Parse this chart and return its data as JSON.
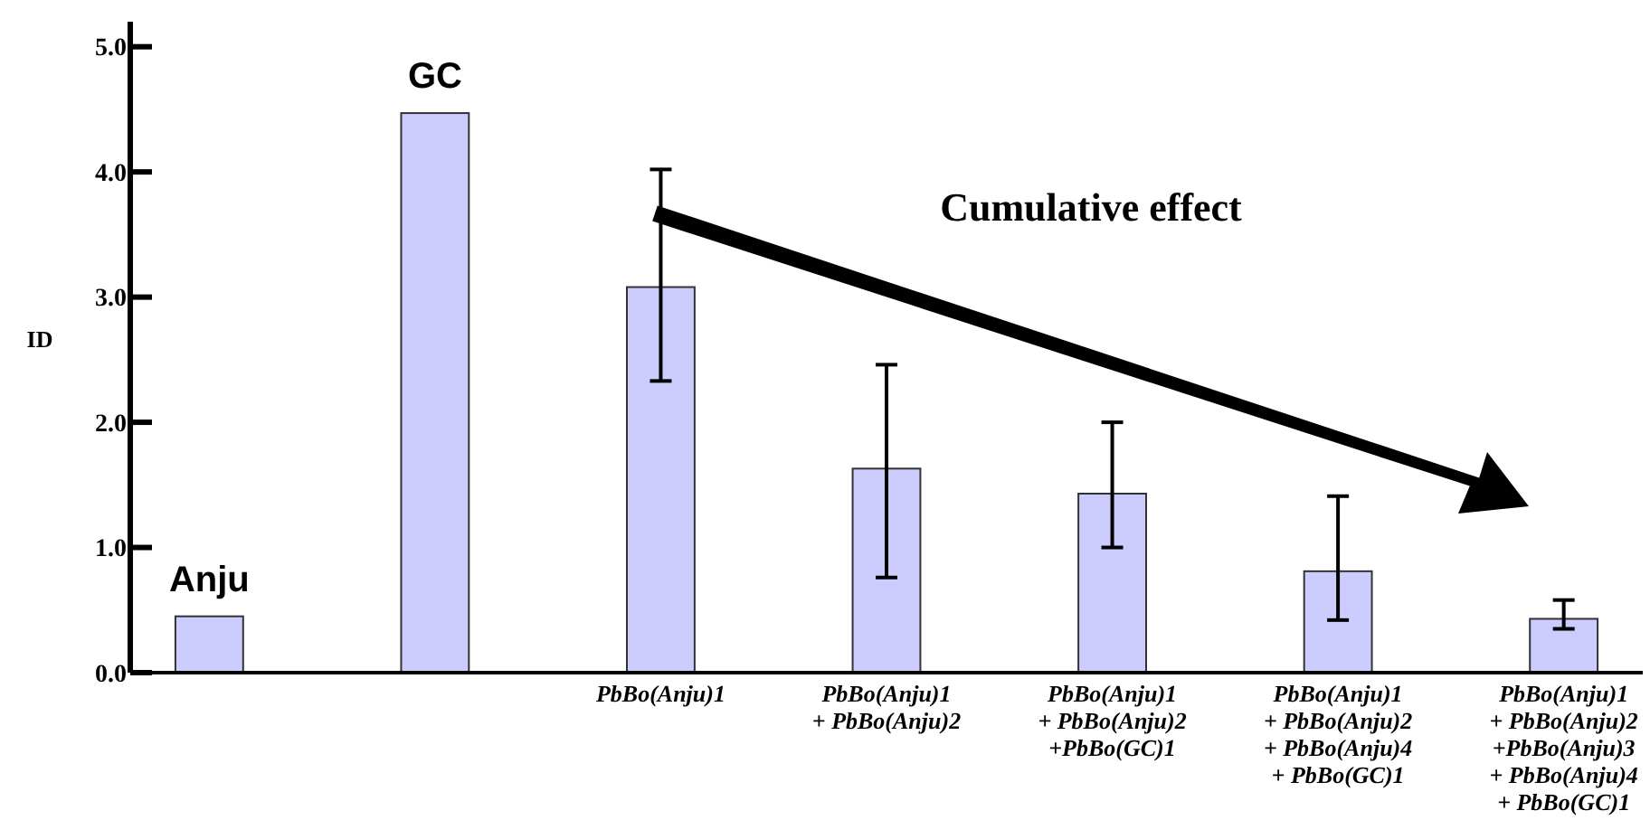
{
  "chart_data": {
    "type": "bar",
    "ylabel": "ID",
    "categories": [
      "Anju",
      "GC",
      "PbBo(Anju)1",
      "PbBo(Anju)1\n+ PbBo(Anju)2",
      "PbBo(Anju)1\n+ PbBo(Anju)2\n+PbBo(GC)1",
      "PbBo(Anju)1\n+ PbBo(Anju)2\n+ PbBo(Anju)4\n+ PbBo(GC)1",
      "PbBo(Anju)1\n+ PbBo(Anju)2\n+PbBo(Anju)3\n+ PbBo(Anju)4\n+ PbBo(GC)1"
    ],
    "values": [
      0.45,
      4.47,
      3.08,
      1.63,
      1.43,
      0.81,
      0.43
    ],
    "errors": [
      null,
      null,
      [
        2.33,
        4.02
      ],
      [
        0.76,
        2.46
      ],
      [
        1.0,
        2.0
      ],
      [
        0.42,
        1.41
      ],
      [
        0.35,
        0.58
      ]
    ],
    "color": "#ccccff",
    "ylim": [
      0,
      5.2
    ],
    "yticks": [
      {
        "value": 0,
        "label": "0.0"
      },
      {
        "value": 1,
        "label": "1.0"
      },
      {
        "value": 2,
        "label": "2.0"
      },
      {
        "value": 3,
        "label": "3.0"
      },
      {
        "value": 4,
        "label": "4.0"
      },
      {
        "value": 5,
        "label": "5.0"
      }
    ],
    "annotations": [
      "Cumulative effect"
    ],
    "grid": false
  }
}
